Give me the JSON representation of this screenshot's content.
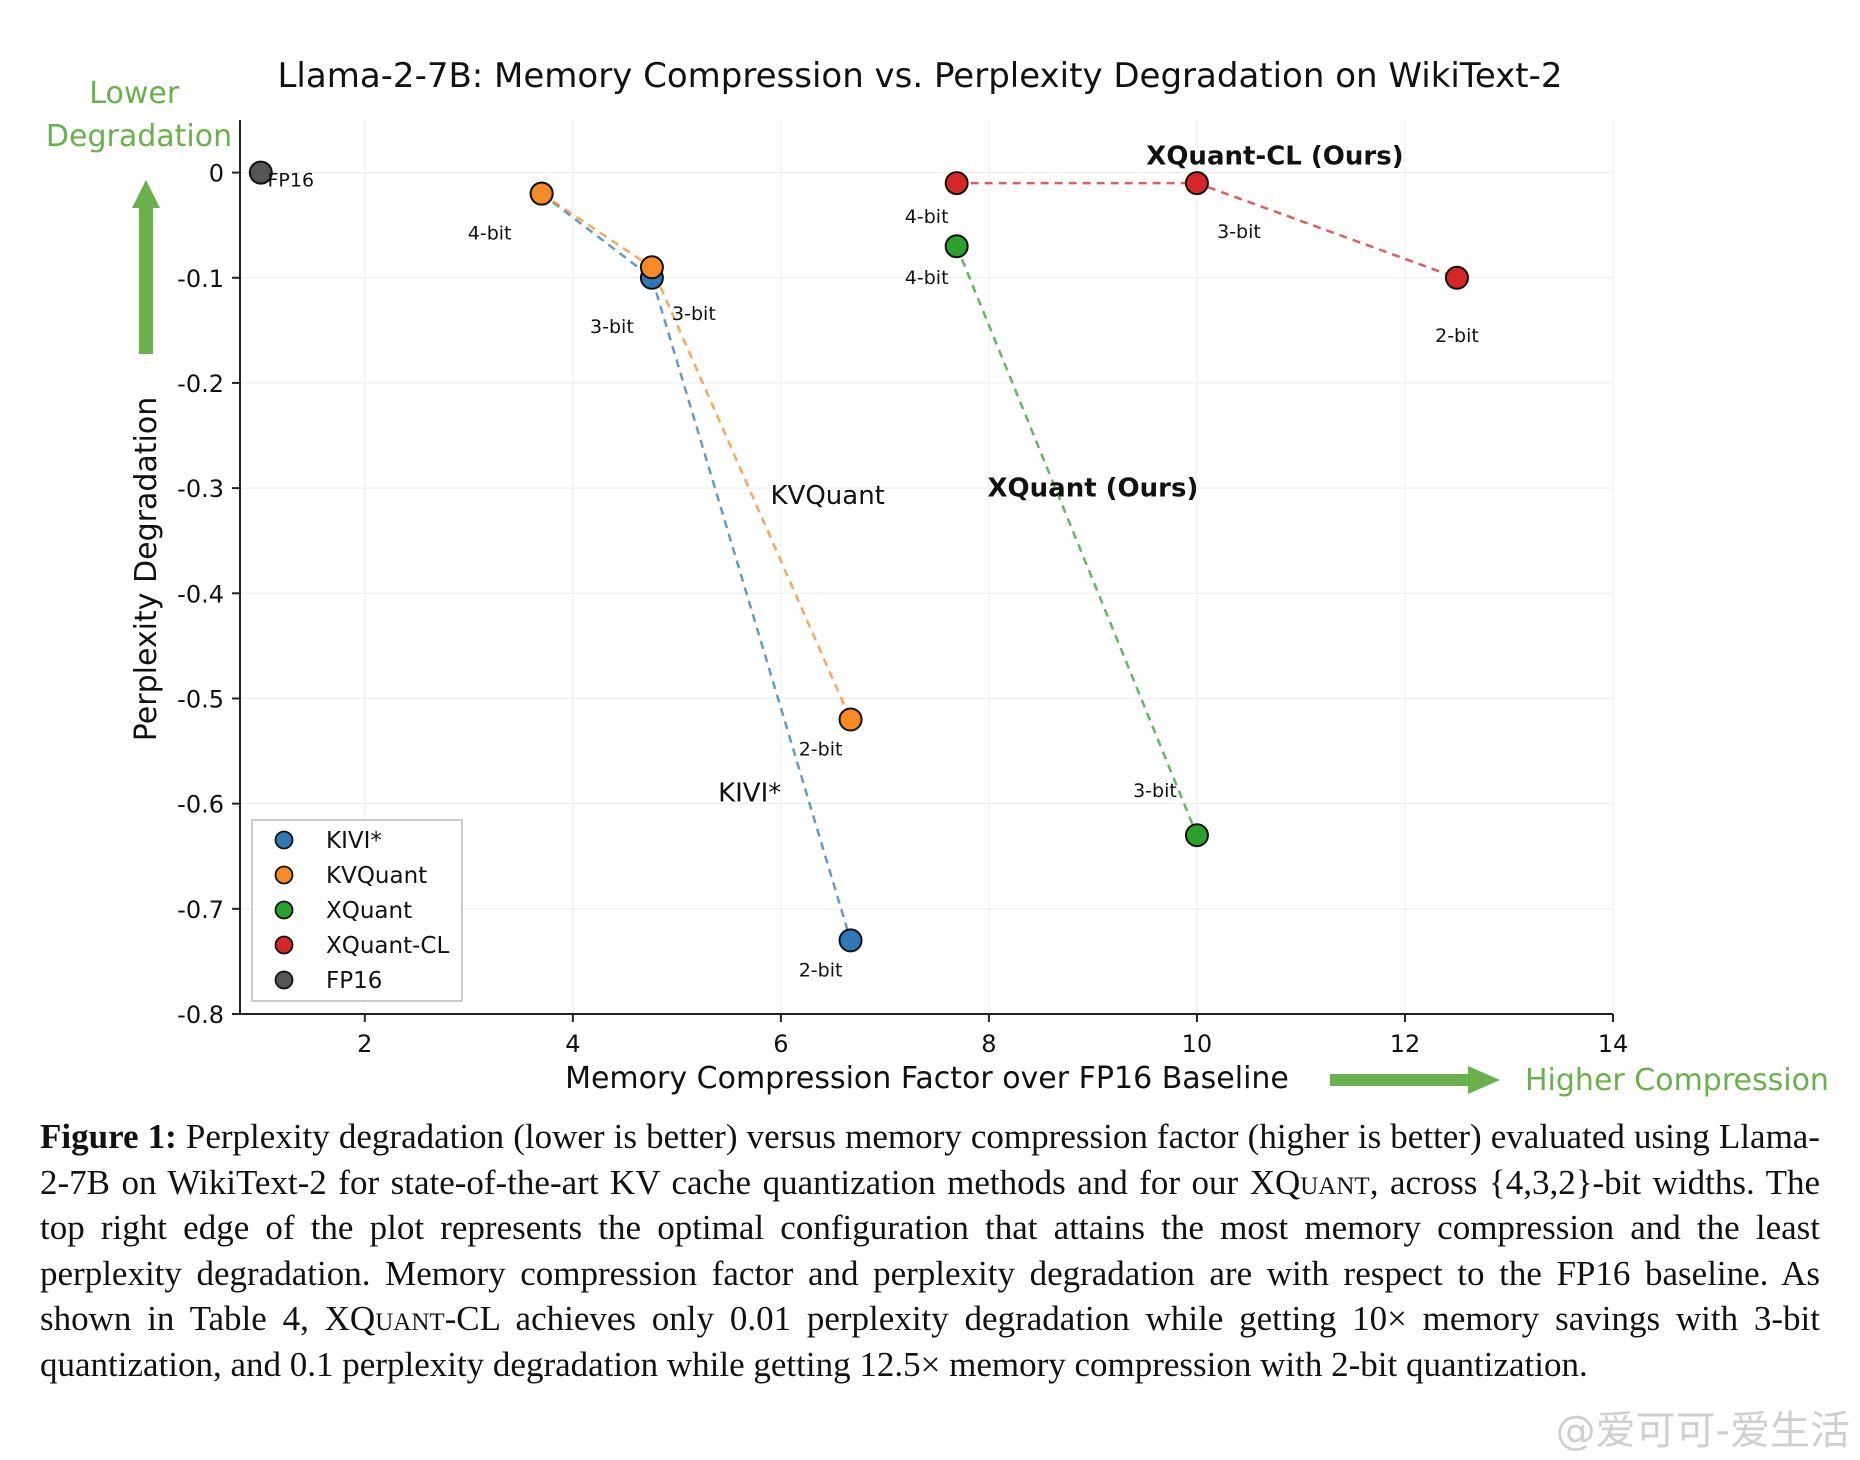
{
  "chart_data": {
    "type": "scatter",
    "title": "Llama-2-7B: Memory Compression vs. Perplexity Degradation on WikiText-2",
    "xlabel": "Memory Compression Factor over FP16 Baseline",
    "ylabel": "Perplexity Degradation",
    "xlim": [
      0.8,
      14
    ],
    "ylim": [
      -0.8,
      0.05
    ],
    "xticks": [
      2,
      4,
      6,
      8,
      10,
      12,
      14
    ],
    "yticks": [
      0,
      -0.1,
      -0.2,
      -0.3,
      -0.4,
      -0.5,
      -0.6,
      -0.7,
      -0.8
    ],
    "ytick_labels": [
      "0",
      "-0.1",
      "-0.2",
      "-0.3",
      "-0.4",
      "-0.5",
      "-0.6",
      "-0.7",
      "-0.8"
    ],
    "grid": true,
    "legend_position": "bottom-left",
    "series": [
      {
        "name": "KIVI*",
        "color": "#2f78b5",
        "x": [
          3.7,
          4.76,
          6.67
        ],
        "y": [
          -0.02,
          -0.1,
          -0.73
        ],
        "point_labels": [
          "",
          "3-bit",
          "2-bit"
        ],
        "curve_label": "KIVI*"
      },
      {
        "name": "KVQuant",
        "color": "#f58a26",
        "x": [
          3.7,
          4.76,
          6.67
        ],
        "y": [
          -0.02,
          -0.09,
          -0.52
        ],
        "point_labels": [
          "4-bit",
          "3-bit",
          "2-bit"
        ],
        "curve_label": "KVQuant"
      },
      {
        "name": "XQuant",
        "color": "#2ca02c",
        "x": [
          7.69,
          10.0
        ],
        "y": [
          -0.07,
          -0.63
        ],
        "point_labels": [
          "4-bit",
          "3-bit"
        ],
        "curve_label": "XQuant (Ours)"
      },
      {
        "name": "XQuant-CL",
        "color": "#d62728",
        "x": [
          7.69,
          10.0,
          12.5
        ],
        "y": [
          -0.01,
          -0.01,
          -0.1
        ],
        "point_labels": [
          "4-bit",
          "3-bit",
          "2-bit"
        ],
        "curve_label": "XQuant-CL (Ours)"
      },
      {
        "name": "FP16",
        "color": "#555555",
        "x": [
          1.0
        ],
        "y": [
          0.0
        ],
        "point_labels": [
          "FP16"
        ],
        "curve_label": ""
      }
    ],
    "annotations": {
      "lower_degradation": "Lower\nDegradation",
      "higher_compression": "Higher Compression",
      "arrow_color": "#6ab04c"
    }
  },
  "caption": {
    "label": "Figure 1:",
    "text_1": " Perplexity degradation (lower is better) versus memory compression factor (higher is better) evaluated using Llama-2-7B on WikiText-2 for state-of-the-art KV cache quantization methods and for our ",
    "xquant_1": "XQuant",
    "text_2": ", across {4,3,2}-bit widths. The top right edge of the plot represents the optimal configuration that attains the most memory compression and the least perplexity degradation. Memory compression factor and perplexity degradation are with respect to the FP16 baseline. As shown in Table 4, ",
    "xquant_2": "XQuant",
    "text_3": "-CL achieves only 0.01 perplexity degradation while getting 10× memory savings with 3-bit quantization, and 0.1 perplexity degradation while getting 12.5× memory compression with 2-bit quantization."
  },
  "watermark": "@爱可可-爱生活"
}
